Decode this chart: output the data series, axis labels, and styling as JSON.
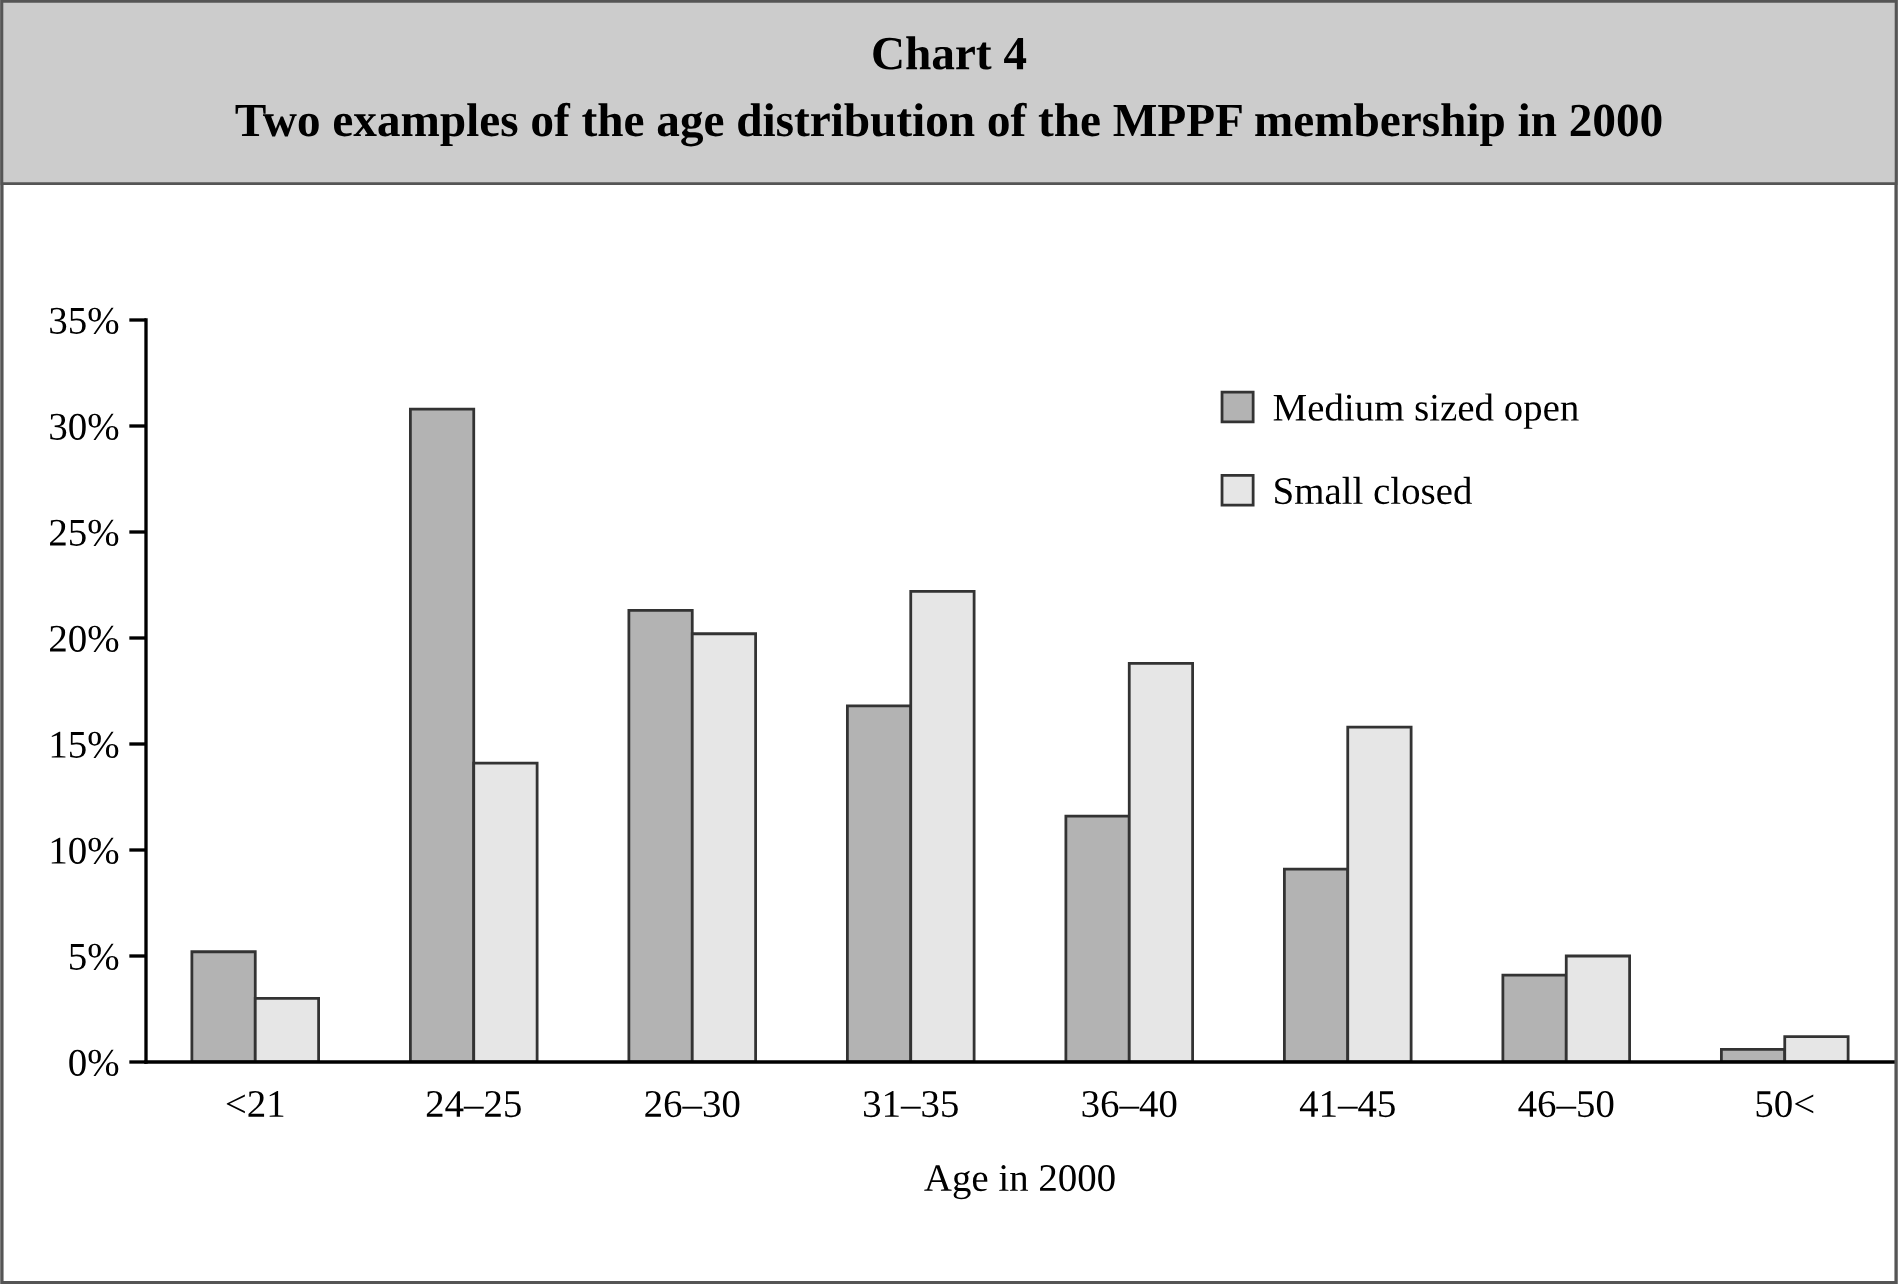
{
  "chart_data": {
    "type": "bar",
    "title": "Chart 4",
    "subtitle": "Two examples of the age distribution of the MPPF membership in 2000",
    "xlabel": "Age in 2000",
    "categories": [
      "<21",
      "24–25",
      "26–30",
      "31–35",
      "36–40",
      "41–45",
      "46–50",
      "50<"
    ],
    "series": [
      {
        "name": "Medium sized open",
        "color": "#b3b3b3",
        "values": [
          5.2,
          30.8,
          21.3,
          16.8,
          11.6,
          9.1,
          4.1,
          0.6
        ]
      },
      {
        "name": "Small closed",
        "color": "#e6e6e6",
        "values": [
          3.0,
          14.1,
          20.2,
          22.2,
          18.8,
          15.8,
          5.0,
          1.2
        ]
      }
    ],
    "ylim": [
      0,
      35
    ],
    "yticks": [
      {
        "value": 0,
        "label": "0%"
      },
      {
        "value": 5,
        "label": "5%"
      },
      {
        "value": 10,
        "label": "10%"
      },
      {
        "value": 15,
        "label": "15%"
      },
      {
        "value": 20,
        "label": "20%"
      },
      {
        "value": 25,
        "label": "25%"
      },
      {
        "value": 30,
        "label": "30%"
      },
      {
        "value": 35,
        "label": "35%"
      }
    ],
    "grid": false,
    "legend": "top right"
  }
}
